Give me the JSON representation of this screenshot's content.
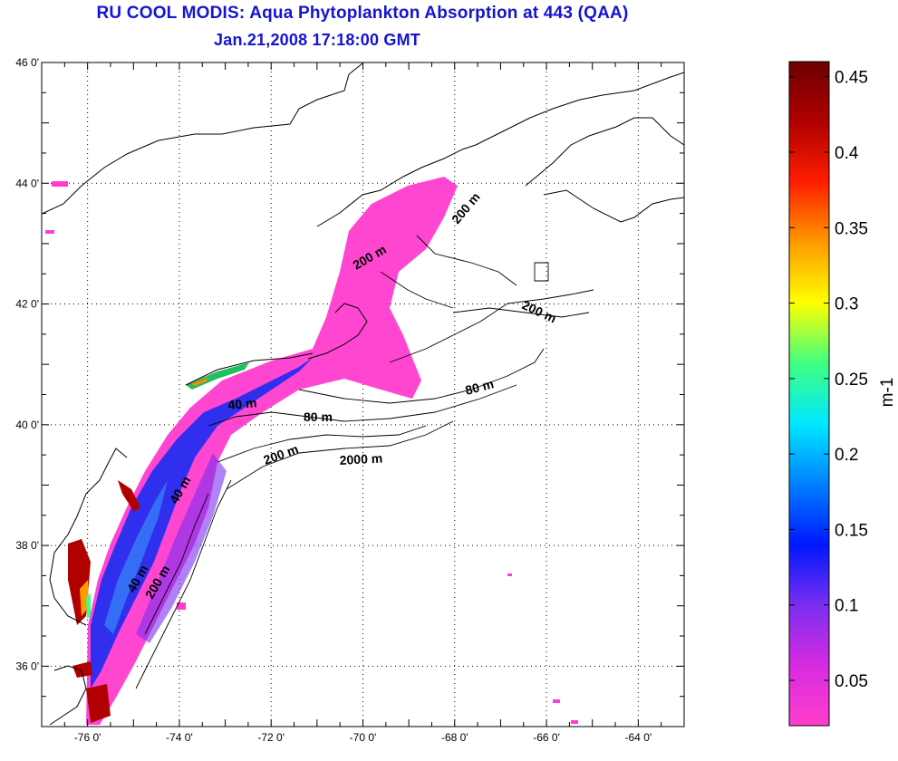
{
  "title": "RU COOL MODIS: Aqua Phytoplankton Absorption at 443 (QAA)",
  "subtitle": "Jan.21,2008 17:18:00 GMT",
  "map": {
    "lat_ticks": [
      "46 0'",
      "44 0'",
      "42 0'",
      "40 0'",
      "38 0'",
      "36 0'"
    ],
    "lon_ticks": [
      "-76 0'",
      "-74 0'",
      "-72 0'",
      "-70 0'",
      "-68 0'",
      "-66 0'",
      "-64 0'"
    ],
    "lat_range": [
      35,
      46
    ],
    "lon_range": [
      -77,
      -63
    ],
    "grid": "dotted",
    "isobath_labels": [
      "200 m",
      "200 m",
      "200 m",
      "40 m",
      "80 m",
      "80 m",
      "200 m",
      "2000 m",
      "40 m",
      "200 m",
      "40 m"
    ]
  },
  "colorbar": {
    "label": "m-1",
    "ticks": [
      "0.45",
      "0.4",
      "0.35",
      "0.3",
      "0.25",
      "0.2",
      "0.15",
      "0.1",
      "0.05"
    ],
    "tick_values": [
      0.45,
      0.4,
      0.35,
      0.3,
      0.25,
      0.2,
      0.15,
      0.1,
      0.05
    ],
    "range": [
      0.02,
      0.46
    ],
    "colormap": [
      "#ff3dcc",
      "#d62ce0",
      "#7a2ef0",
      "#0018ff",
      "#0080ff",
      "#00e8ff",
      "#40ff80",
      "#ffff00",
      "#ff9a00",
      "#ff1e00",
      "#b00000",
      "#6e0000"
    ]
  }
}
